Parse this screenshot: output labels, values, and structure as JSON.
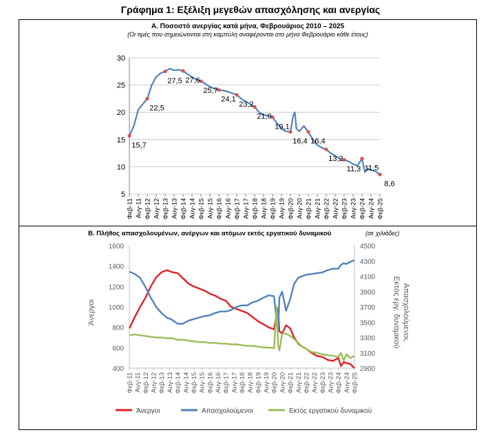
{
  "figure": {
    "title": "Γράφημα 1: Εξέλιξη μεγεθών απασχόλησης και ανεργίας"
  },
  "colors": {
    "unemp": "#E31E24",
    "emp": "#4F81BD",
    "inactive": "#9BBB59",
    "rateLine": "#4F81BD",
    "rateMarker": "#D9534F",
    "grid": "#BFBFBF"
  },
  "chart_data": [
    {
      "type": "line",
      "title": "Α. Ποσοστό ανεργίας κατά μήνα, Φεβρουάριος 2010 – 2025",
      "subtitle": "(Οι τιμές που σημειώνονται στη καμπύλη αναφέρονται στο μήνα Φεβρουάριο κάθε έτους)",
      "x_tick_labels": [
        "Φεβ-11",
        "Αυγ-11",
        "Φεβ-12",
        "Αυγ-12",
        "Φεβ-13",
        "Αυγ-13",
        "Φεβ-14",
        "Αυγ-14",
        "Φεβ-15",
        "Αυγ-15",
        "Φεβ-16",
        "Αυγ-16",
        "Φεβ-17",
        "Αυγ-17",
        "Φεβ-18",
        "Αυγ-18",
        "Φεβ-19",
        "Αυγ-19",
        "Φεβ-20",
        "Αυγ-20",
        "Φεβ-21",
        "Αυγ-21",
        "Φεβ-22",
        "Αυγ-22",
        "Φεβ-23",
        "Αυγ-23",
        "Φεβ-24",
        "Αυγ-24",
        "Φεβ-25"
      ],
      "y_ticks": [
        "5",
        "10",
        "15",
        "20",
        "25",
        "30"
      ],
      "ylim": [
        5,
        30
      ],
      "grid": true,
      "series": [
        {
          "x": [
            "2011-02",
            "2011-05",
            "2011-08",
            "2011-11",
            "2012-02",
            "2012-05",
            "2012-08",
            "2012-11",
            "2013-02",
            "2013-05",
            "2013-08",
            "2013-11",
            "2014-02",
            "2014-05",
            "2014-08",
            "2014-11",
            "2015-02",
            "2015-05",
            "2015-08",
            "2015-11",
            "2016-02",
            "2016-05",
            "2016-08",
            "2016-11",
            "2017-02",
            "2017-05",
            "2017-08",
            "2017-11",
            "2018-02",
            "2018-05",
            "2018-08",
            "2018-11",
            "2019-02",
            "2019-05",
            "2019-08",
            "2019-11",
            "2020-02",
            "2020-04",
            "2020-05",
            "2020-06",
            "2020-08",
            "2020-11",
            "2021-02",
            "2021-05",
            "2021-08",
            "2021-11",
            "2022-02",
            "2022-05",
            "2022-08",
            "2022-11",
            "2023-02",
            "2023-05",
            "2023-08",
            "2023-11",
            "2024-02",
            "2024-04",
            "2024-06",
            "2024-08",
            "2024-11",
            "2025-02"
          ],
          "values": [
            15.7,
            17.5,
            20.5,
            21.5,
            22.5,
            25.0,
            26.5,
            27.2,
            27.5,
            28.0,
            27.7,
            27.8,
            27.6,
            27.0,
            26.5,
            26.0,
            25.7,
            25.2,
            24.7,
            24.3,
            24.1,
            24.0,
            23.8,
            23.5,
            23.2,
            22.5,
            22.0,
            21.5,
            21.0,
            20.0,
            19.5,
            19.4,
            19.1,
            18.0,
            17.0,
            16.5,
            16.4,
            19.5,
            20.0,
            17.0,
            16.5,
            17.5,
            16.4,
            15.0,
            14.0,
            13.5,
            13.2,
            12.5,
            12.0,
            11.5,
            11.3,
            11.0,
            10.5,
            10.2,
            11.5,
            9.0,
            9.7,
            9.4,
            9.2,
            8.6
          ]
        }
      ],
      "point_labels": [
        {
          "x": "2011-02",
          "text": "15,7"
        },
        {
          "x": "2012-02",
          "text": "22,5"
        },
        {
          "x": "2013-02",
          "text": "27,5"
        },
        {
          "x": "2014-02",
          "text": "27,6"
        },
        {
          "x": "2015-02",
          "text": "25,7"
        },
        {
          "x": "2016-02",
          "text": "24,1"
        },
        {
          "x": "2017-02",
          "text": "23,2"
        },
        {
          "x": "2018-02",
          "text": "21,0"
        },
        {
          "x": "2019-02",
          "text": "19,1"
        },
        {
          "x": "2020-02",
          "text": "16,4"
        },
        {
          "x": "2021-02",
          "text": "16,4"
        },
        {
          "x": "2022-02",
          "text": "13,2"
        },
        {
          "x": "2023-02",
          "text": "11,3"
        },
        {
          "x": "2024-02",
          "text": "11,5"
        },
        {
          "x": "2025-02",
          "text": "8,6"
        }
      ]
    },
    {
      "type": "line",
      "title": "Β. Πλήθος απασχολουμένων, ανέργων και ατόμων εκτός εργατικού δυναμικού",
      "subtitle": "(σε χιλιάδες)",
      "x_tick_labels": [
        "Φεβ-11",
        "Αυγ-11",
        "Φεβ-12",
        "Αυγ-12",
        "Φεβ-13",
        "Αυγ-13",
        "Φεβ-14",
        "Αυγ-14",
        "Φεβ-15",
        "Αυγ-15",
        "Φεβ-16",
        "Αυγ-16",
        "Φεβ-17",
        "Αυγ-17",
        "Φεβ-18",
        "Αυγ-18",
        "Φεβ-19",
        "Αυγ-19",
        "Φεβ-20",
        "Αυγ-20",
        "Φεβ-21",
        "Αυγ-21",
        "Φεβ-22",
        "Αυγ-22",
        "Φεβ-23",
        "Αυγ-23",
        "Φεβ-24",
        "Αυγ-24",
        "Φεβ-25"
      ],
      "ylabel": "Άνεργοι",
      "y2label": "Απασχολούμενοι, Εκτός εργ. δυναμικού",
      "y_ticks": [
        "400",
        "600",
        "800",
        "1000",
        "1200",
        "1400",
        "1600"
      ],
      "y2_ticks": [
        "2900",
        "3100",
        "3300",
        "3500",
        "3700",
        "3900",
        "4100",
        "4300",
        "4500"
      ],
      "ylim": [
        400,
        1600
      ],
      "y2lim": [
        2900,
        4500
      ],
      "legend_position": "bottom",
      "series": [
        {
          "name": "Άνεργοι",
          "axis": "left",
          "x": [
            "2011-02",
            "2011-06",
            "2011-10",
            "2012-02",
            "2012-06",
            "2012-10",
            "2013-02",
            "2013-06",
            "2013-10",
            "2014-02",
            "2014-06",
            "2014-10",
            "2015-02",
            "2015-06",
            "2015-10",
            "2016-02",
            "2016-06",
            "2016-10",
            "2017-02",
            "2017-06",
            "2017-10",
            "2018-02",
            "2018-06",
            "2018-10",
            "2019-02",
            "2019-06",
            "2019-10",
            "2020-02",
            "2020-04",
            "2020-05",
            "2020-06",
            "2020-08",
            "2020-11",
            "2021-02",
            "2021-05",
            "2021-08",
            "2021-11",
            "2022-02",
            "2022-06",
            "2022-10",
            "2023-02",
            "2023-06",
            "2023-10",
            "2024-02",
            "2024-04",
            "2024-06",
            "2024-08",
            "2024-11",
            "2025-02"
          ],
          "values": [
            790,
            900,
            1000,
            1090,
            1200,
            1290,
            1340,
            1360,
            1340,
            1330,
            1280,
            1230,
            1200,
            1180,
            1160,
            1130,
            1110,
            1080,
            1060,
            1000,
            980,
            960,
            940,
            900,
            860,
            830,
            800,
            780,
            930,
            980,
            760,
            740,
            820,
            790,
            700,
            640,
            610,
            590,
            550,
            520,
            510,
            480,
            470,
            500,
            420,
            460,
            450,
            440,
            400
          ]
        },
        {
          "name": "Απασχολούμενοι",
          "axis": "right",
          "x": [
            "2011-02",
            "2011-06",
            "2011-10",
            "2012-02",
            "2012-06",
            "2012-10",
            "2013-02",
            "2013-06",
            "2013-10",
            "2014-02",
            "2014-06",
            "2014-10",
            "2015-02",
            "2015-06",
            "2015-10",
            "2016-02",
            "2016-06",
            "2016-10",
            "2017-02",
            "2017-06",
            "2017-10",
            "2018-02",
            "2018-06",
            "2018-10",
            "2019-02",
            "2019-06",
            "2019-10",
            "2020-02",
            "2020-04",
            "2020-05",
            "2020-06",
            "2020-08",
            "2020-11",
            "2021-02",
            "2021-05",
            "2021-08",
            "2021-11",
            "2022-02",
            "2022-06",
            "2022-10",
            "2023-02",
            "2023-06",
            "2023-10",
            "2024-02",
            "2024-04",
            "2024-06",
            "2024-08",
            "2024-11",
            "2025-02"
          ],
          "values": [
            4160,
            4130,
            4080,
            3960,
            3820,
            3700,
            3620,
            3560,
            3530,
            3480,
            3480,
            3520,
            3540,
            3560,
            3580,
            3590,
            3620,
            3640,
            3640,
            3660,
            3700,
            3720,
            3720,
            3760,
            3780,
            3820,
            3850,
            3840,
            3500,
            3380,
            3820,
            3900,
            3650,
            3800,
            4000,
            4080,
            4100,
            4120,
            4130,
            4140,
            4150,
            4180,
            4200,
            4200,
            4250,
            4270,
            4260,
            4290,
            4310
          ]
        },
        {
          "name": "Εκτός εργατικού δυναμικού",
          "axis": "right",
          "x": [
            "2011-02",
            "2011-06",
            "2011-10",
            "2012-02",
            "2012-06",
            "2012-10",
            "2013-02",
            "2013-06",
            "2013-10",
            "2014-02",
            "2014-06",
            "2014-10",
            "2015-02",
            "2015-06",
            "2015-10",
            "2016-02",
            "2016-06",
            "2016-10",
            "2017-02",
            "2017-06",
            "2017-10",
            "2018-02",
            "2018-06",
            "2018-10",
            "2019-02",
            "2019-06",
            "2019-10",
            "2020-02",
            "2020-04",
            "2020-05",
            "2020-06",
            "2020-08",
            "2020-11",
            "2021-02",
            "2021-05",
            "2021-08",
            "2021-11",
            "2022-02",
            "2022-06",
            "2022-10",
            "2023-02",
            "2023-06",
            "2023-10",
            "2024-02",
            "2024-04",
            "2024-06",
            "2024-08",
            "2024-11",
            "2025-02"
          ],
          "values": [
            3330,
            3340,
            3330,
            3320,
            3310,
            3300,
            3300,
            3290,
            3290,
            3270,
            3270,
            3260,
            3250,
            3240,
            3240,
            3230,
            3230,
            3220,
            3220,
            3210,
            3210,
            3200,
            3190,
            3190,
            3180,
            3170,
            3170,
            3160,
            3700,
            3200,
            3130,
            3350,
            3350,
            3320,
            3280,
            3230,
            3180,
            3150,
            3110,
            3100,
            3080,
            3070,
            3060,
            3050,
            3100,
            3000,
            3080,
            3030,
            3060
          ]
        }
      ]
    }
  ]
}
